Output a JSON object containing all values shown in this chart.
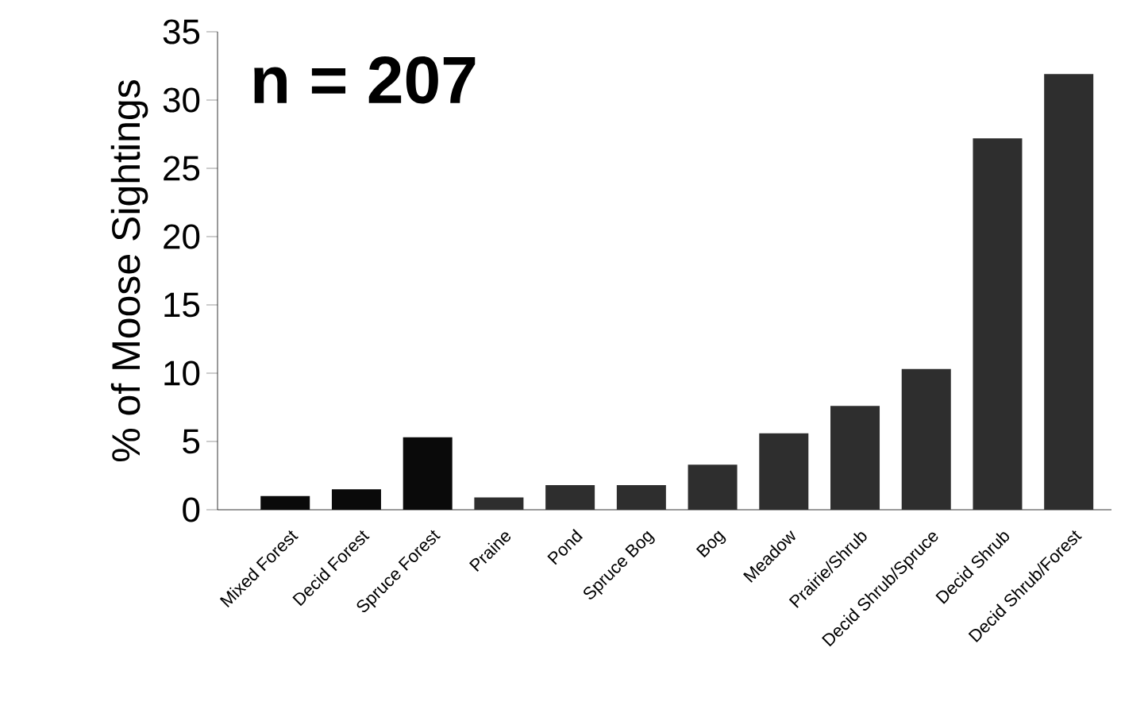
{
  "chart_data": {
    "type": "bar",
    "ylabel": "% of Moose Sightings",
    "annotations": [
      "n = 207"
    ],
    "categories": [
      "Mixed Forest",
      "Decid Forest",
      "Spruce Forest",
      "Praine",
      "Pond",
      "Spruce Bog",
      "Bog",
      "Meadow",
      "Prairie/Shrub",
      "Decid Shrub/Spruce",
      "Decid Shrub",
      "Decid Shrub/Forest"
    ],
    "values": [
      1.0,
      1.5,
      5.3,
      0.9,
      1.8,
      1.8,
      3.3,
      5.6,
      7.6,
      10.3,
      27.2,
      31.9
    ],
    "colors": [
      "#0a0a0a",
      "#0a0a0a",
      "#0a0a0a",
      "#2e2e2e",
      "#2e2e2e",
      "#2e2e2e",
      "#2e2e2e",
      "#2e2e2e",
      "#2e2e2e",
      "#2e2e2e",
      "#2e2e2e",
      "#2e2e2e"
    ],
    "ylim": [
      0,
      35
    ],
    "yticks": [
      0,
      5,
      10,
      15,
      20,
      25,
      30,
      35
    ],
    "grid": false
  }
}
